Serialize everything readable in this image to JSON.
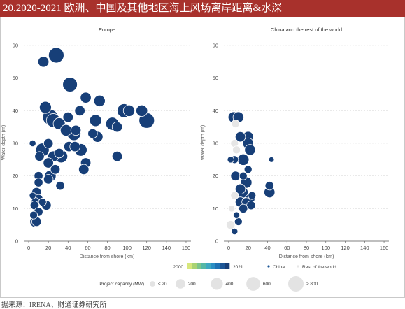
{
  "header": {
    "title": "20.2020-2021 欧洲、中国及其他地区海上风场离岸距离&水深"
  },
  "source": "据来源：IRENA、财通证券研究所",
  "colors": {
    "title_bg": "#a8312c",
    "year_scale": [
      "#d7e77c",
      "#a9d373",
      "#7cc58c",
      "#55b8a6",
      "#3ea8c2",
      "#2b8fc4",
      "#1f72b4",
      "#1d5797",
      "#173f78"
    ],
    "rest_of_world": "#e6e6e6",
    "size_legend": "#e3e3e3"
  },
  "chart_data": {
    "type": "scatter",
    "panels": [
      {
        "title": "Europe",
        "xlabel": "Distance from shore (km)",
        "ylabel": "Water depth (m)",
        "xlim": [
          -5,
          165
        ],
        "ylim": [
          0,
          63
        ],
        "xticks": [
          0,
          20,
          40,
          60,
          80,
          100,
          120,
          140,
          160
        ],
        "yticks": [
          0,
          10,
          20,
          30,
          40,
          50,
          60
        ],
        "points": [
          {
            "x": 28,
            "y": 57,
            "mw": 800,
            "year": 2021
          },
          {
            "x": 15,
            "y": 55,
            "mw": 300,
            "year": 2020
          },
          {
            "x": 42,
            "y": 48,
            "mw": 700,
            "year": 2021
          },
          {
            "x": 58,
            "y": 44,
            "mw": 300,
            "year": 2021
          },
          {
            "x": 72,
            "y": 43,
            "mw": 350,
            "year": 2021
          },
          {
            "x": 17,
            "y": 41,
            "mw": 400,
            "year": 2021
          },
          {
            "x": 52,
            "y": 40,
            "mw": 250,
            "year": 2021
          },
          {
            "x": 97,
            "y": 40,
            "mw": 600,
            "year": 2021
          },
          {
            "x": 102,
            "y": 40,
            "mw": 350,
            "year": 2021
          },
          {
            "x": 115,
            "y": 40,
            "mw": 350,
            "year": 2021
          },
          {
            "x": 22,
            "y": 38,
            "mw": 800,
            "year": 2021
          },
          {
            "x": 40,
            "y": 38,
            "mw": 250,
            "year": 2021
          },
          {
            "x": 25,
            "y": 37,
            "mw": 600,
            "year": 2021
          },
          {
            "x": 31,
            "y": 36,
            "mw": 400,
            "year": 2020
          },
          {
            "x": 68,
            "y": 37,
            "mw": 400,
            "year": 2021
          },
          {
            "x": 85,
            "y": 36,
            "mw": 500,
            "year": 2021
          },
          {
            "x": 120,
            "y": 37,
            "mw": 800,
            "year": 2021
          },
          {
            "x": 90,
            "y": 35,
            "mw": 250,
            "year": 2021
          },
          {
            "x": 38,
            "y": 34,
            "mw": 350,
            "year": 2021
          },
          {
            "x": 48,
            "y": 34,
            "mw": 250,
            "year": 2021
          },
          {
            "x": 65,
            "y": 33,
            "mw": 200,
            "year": 2021
          },
          {
            "x": 70,
            "y": 32,
            "mw": 300,
            "year": 2021
          },
          {
            "x": 46,
            "y": 33,
            "mw": 600,
            "year": 2021
          },
          {
            "x": 4,
            "y": 30,
            "mw": 50,
            "year": 2021
          },
          {
            "x": 20,
            "y": 30,
            "mw": 200,
            "year": 2021
          },
          {
            "x": 41,
            "y": 29,
            "mw": 250,
            "year": 2021
          },
          {
            "x": 47,
            "y": 29,
            "mw": 250,
            "year": 2021
          },
          {
            "x": 53,
            "y": 28,
            "mw": 450,
            "year": 2021
          },
          {
            "x": 14,
            "y": 28,
            "mw": 550,
            "year": 2021
          },
          {
            "x": 31,
            "y": 27,
            "mw": 200,
            "year": 2020
          },
          {
            "x": 11,
            "y": 26,
            "mw": 200,
            "year": 2021
          },
          {
            "x": 33,
            "y": 26,
            "mw": 500,
            "year": 2021
          },
          {
            "x": 25,
            "y": 26,
            "mw": 300,
            "year": 2021
          },
          {
            "x": 90,
            "y": 26,
            "mw": 250,
            "year": 2021
          },
          {
            "x": 20,
            "y": 24,
            "mw": 250,
            "year": 2021
          },
          {
            "x": 58,
            "y": 24,
            "mw": 250,
            "year": 2021
          },
          {
            "x": 27,
            "y": 22,
            "mw": 200,
            "year": 2021
          },
          {
            "x": 10,
            "y": 20,
            "mw": 150,
            "year": 2021
          },
          {
            "x": 22,
            "y": 20,
            "mw": 350,
            "year": 2021
          },
          {
            "x": 56,
            "y": 22,
            "mw": 250,
            "year": 2021
          },
          {
            "x": 20,
            "y": 19,
            "mw": 200,
            "year": 2021
          },
          {
            "x": 10,
            "y": 18,
            "mw": 150,
            "year": 2021
          },
          {
            "x": 32,
            "y": 17,
            "mw": 150,
            "year": 2020
          },
          {
            "x": 8,
            "y": 15,
            "mw": 200,
            "year": 2021
          },
          {
            "x": 4,
            "y": 14,
            "mw": 50,
            "year": 2021
          },
          {
            "x": 10,
            "y": 13,
            "mw": 150,
            "year": 2021
          },
          {
            "x": 7,
            "y": 12,
            "mw": 150,
            "year": 2020
          },
          {
            "x": 14,
            "y": 12,
            "mw": 100,
            "year": 2020
          },
          {
            "x": 6,
            "y": 11,
            "mw": 150,
            "year": 2020
          },
          {
            "x": 18,
            "y": 11,
            "mw": 200,
            "year": 2021
          },
          {
            "x": 10,
            "y": 9,
            "mw": 150,
            "year": 2021
          },
          {
            "x": 5,
            "y": 8,
            "mw": 100,
            "year": 2020
          },
          {
            "x": 7,
            "y": 6,
            "mw": 350,
            "year": 2021
          },
          {
            "x": 8,
            "y": 6,
            "mw": 200,
            "year": 2021
          }
        ]
      },
      {
        "title": "China and the rest of the world",
        "xlabel": "Distance from shore (km)",
        "ylabel": "Water depth (m)",
        "xlim": [
          -5,
          165
        ],
        "ylim": [
          0,
          63
        ],
        "xticks": [
          0,
          20,
          40,
          60,
          80,
          100,
          120,
          140,
          160
        ],
        "yticks": [
          0,
          10,
          20,
          30,
          40,
          50,
          60
        ],
        "points": [
          {
            "x": 5,
            "y": 38,
            "mw": 300,
            "year": 2021,
            "region": "China"
          },
          {
            "x": 10,
            "y": 38,
            "mw": 300,
            "year": 2021,
            "region": "China"
          },
          {
            "x": 7,
            "y": 36,
            "mw": 100,
            "year": 2020,
            "region": "Rest of the world"
          },
          {
            "x": 12,
            "y": 32,
            "mw": 250,
            "year": 2021,
            "region": "China"
          },
          {
            "x": 20,
            "y": 32,
            "mw": 300,
            "year": 2021,
            "region": "China"
          },
          {
            "x": 20,
            "y": 30,
            "mw": 300,
            "year": 2021,
            "region": "China"
          },
          {
            "x": 6,
            "y": 30,
            "mw": 100,
            "year": 2020,
            "region": "Rest of the world"
          },
          {
            "x": 22,
            "y": 28,
            "mw": 300,
            "year": 2021,
            "region": "China"
          },
          {
            "x": 8,
            "y": 28,
            "mw": 100,
            "year": 2021,
            "region": "Rest of the world"
          },
          {
            "x": 2,
            "y": 25,
            "mw": 50,
            "year": 2021,
            "region": "China"
          },
          {
            "x": 6,
            "y": 25,
            "mw": 100,
            "year": 2021,
            "region": "China"
          },
          {
            "x": 15,
            "y": 25,
            "mw": 350,
            "year": 2021,
            "region": "China"
          },
          {
            "x": 44,
            "y": 25,
            "mw": 20,
            "year": 2021,
            "region": "China"
          },
          {
            "x": 20,
            "y": 22,
            "mw": 100,
            "year": 2021,
            "region": "China"
          },
          {
            "x": 7,
            "y": 20,
            "mw": 200,
            "year": 2021,
            "region": "China"
          },
          {
            "x": 15,
            "y": 20,
            "mw": 100,
            "year": 2020,
            "region": "China"
          },
          {
            "x": 18,
            "y": 18,
            "mw": 350,
            "year": 2021,
            "region": "China"
          },
          {
            "x": 12,
            "y": 16,
            "mw": 250,
            "year": 2021,
            "region": "China"
          },
          {
            "x": 42,
            "y": 17,
            "mw": 150,
            "year": 2021,
            "region": "China"
          },
          {
            "x": 14,
            "y": 15,
            "mw": 350,
            "year": 2021,
            "region": "China"
          },
          {
            "x": 42,
            "y": 15,
            "mw": 300,
            "year": 2021,
            "region": "China"
          },
          {
            "x": 24,
            "y": 14,
            "mw": 100,
            "year": 2021,
            "region": "China"
          },
          {
            "x": 6,
            "y": 14,
            "mw": 100,
            "year": 2020,
            "region": "Rest of the world"
          },
          {
            "x": 22,
            "y": 13,
            "mw": 200,
            "year": 2021,
            "region": "China"
          },
          {
            "x": 12,
            "y": 12,
            "mw": 250,
            "year": 2021,
            "region": "China"
          },
          {
            "x": 18,
            "y": 12,
            "mw": 150,
            "year": 2021,
            "region": "China"
          },
          {
            "x": 23,
            "y": 11,
            "mw": 150,
            "year": 2021,
            "region": "China"
          },
          {
            "x": 15,
            "y": 10,
            "mw": 150,
            "year": 2021,
            "region": "China"
          },
          {
            "x": 3,
            "y": 10,
            "mw": 50,
            "year": 2020,
            "region": "Rest of the world"
          },
          {
            "x": 8,
            "y": 8,
            "mw": 50,
            "year": 2021,
            "region": "China"
          },
          {
            "x": 10,
            "y": 6,
            "mw": 100,
            "year": 2021,
            "region": "China"
          },
          {
            "x": 2,
            "y": 5,
            "mw": 150,
            "year": 2020,
            "region": "Rest of the world"
          },
          {
            "x": 6,
            "y": 3,
            "mw": 50,
            "year": 2021,
            "region": "China"
          }
        ]
      }
    ],
    "legend": {
      "year_start": "2000",
      "year_end": "2021",
      "region_labels": [
        "China",
        "Rest of the world"
      ],
      "size_title": "Project capacity (MW)",
      "size_labels": [
        "≤ 20",
        "200",
        "400",
        "600",
        "≥ 800"
      ],
      "size_values": [
        20,
        200,
        400,
        600,
        800
      ]
    }
  }
}
